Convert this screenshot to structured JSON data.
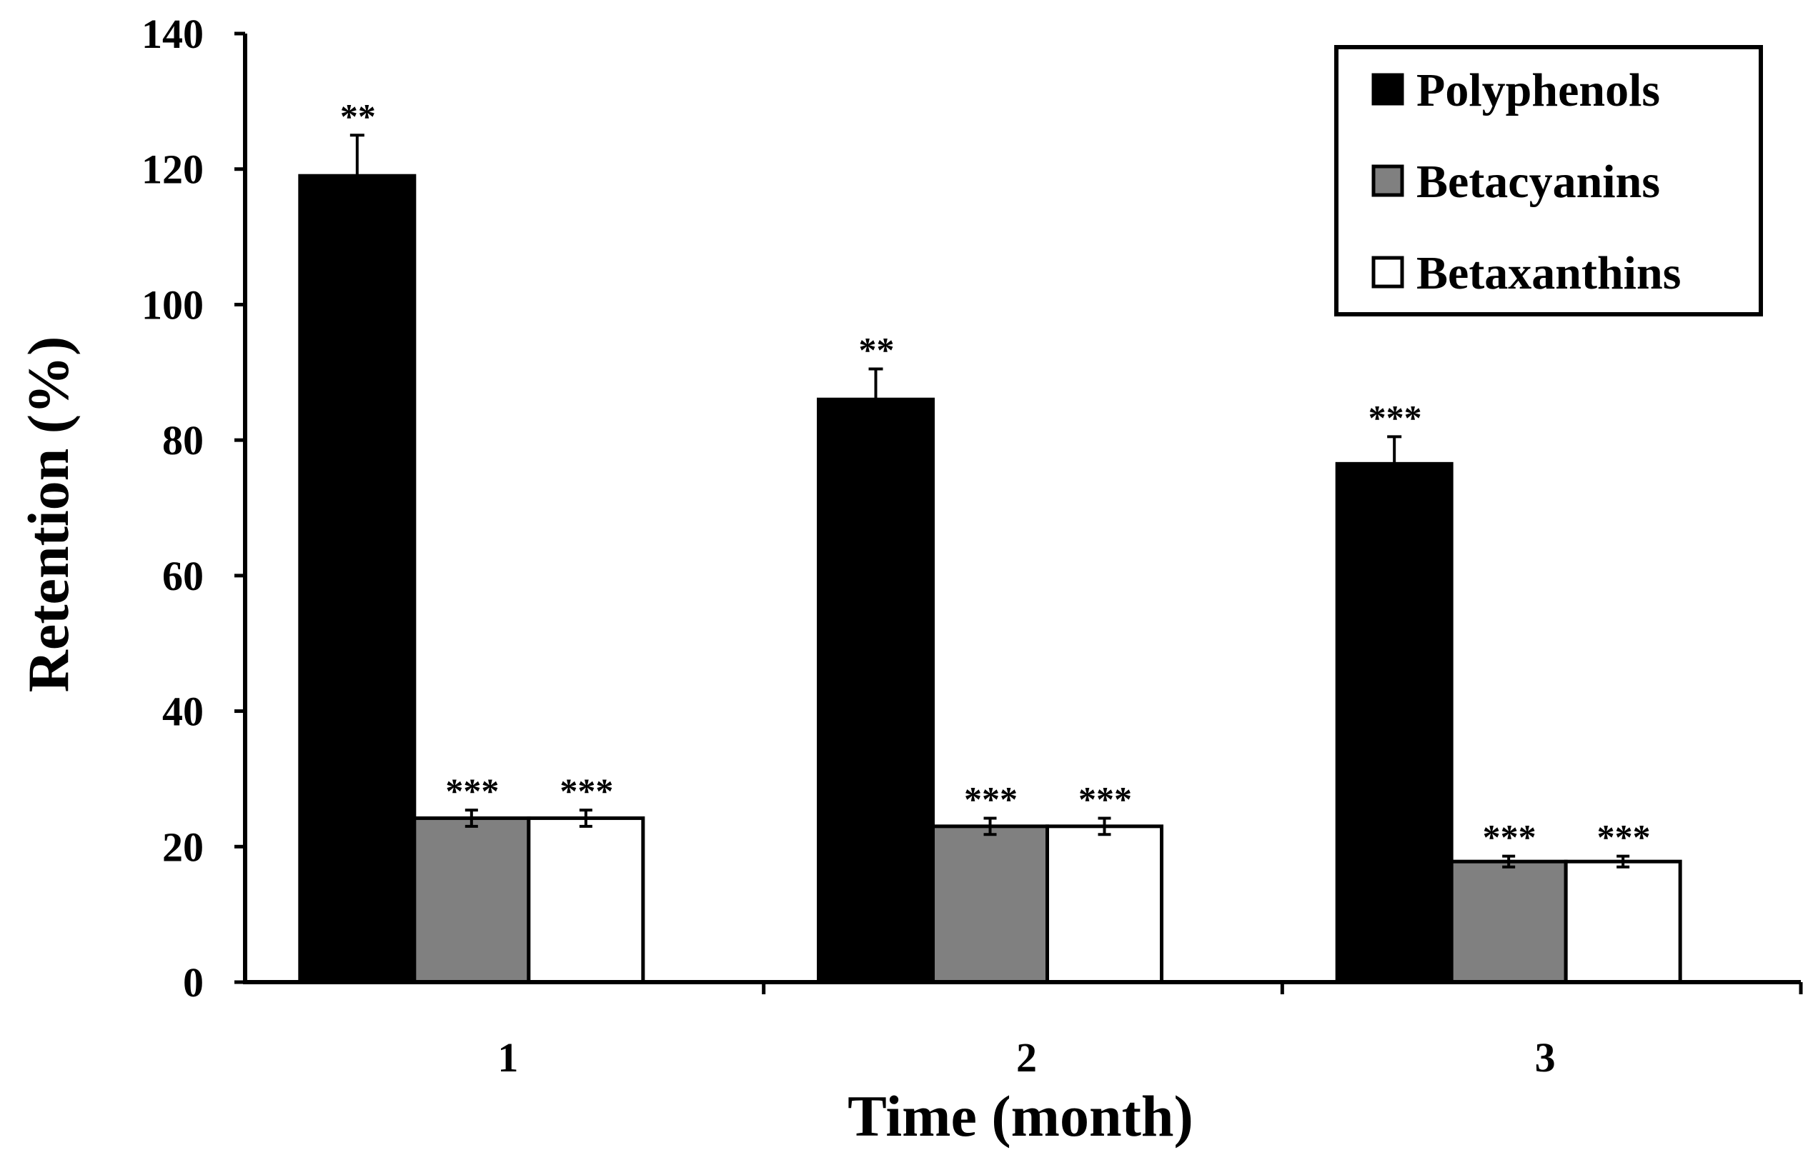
{
  "chart_data": {
    "type": "bar",
    "title": "",
    "xlabel": "Time (month)",
    "ylabel": "Retention (%)",
    "ylim": [
      0,
      140
    ],
    "yticks": [
      "0",
      "20",
      "40",
      "60",
      "80",
      "100",
      "120",
      "140"
    ],
    "categories": [
      "1",
      "2",
      "3"
    ],
    "legend_position": "top-right",
    "grid": false,
    "series": [
      {
        "name": "Polyphenols",
        "color": "#000000",
        "values": [
          119,
          86,
          76.5
        ],
        "errors": [
          6,
          4.5,
          4
        ],
        "significance": [
          "**",
          "**",
          "***"
        ]
      },
      {
        "name": "Betacyanins",
        "color": "#808080",
        "values": [
          24.2,
          23,
          17.8
        ],
        "errors": [
          1.2,
          1.2,
          0.8
        ],
        "significance": [
          "***",
          "***",
          "***"
        ]
      },
      {
        "name": "Betaxanthins",
        "color": "#ffffff",
        "values": [
          24.2,
          23,
          17.8
        ],
        "errors": [
          1.2,
          1.2,
          0.8
        ],
        "significance": [
          "***",
          "***",
          "***"
        ]
      }
    ]
  }
}
